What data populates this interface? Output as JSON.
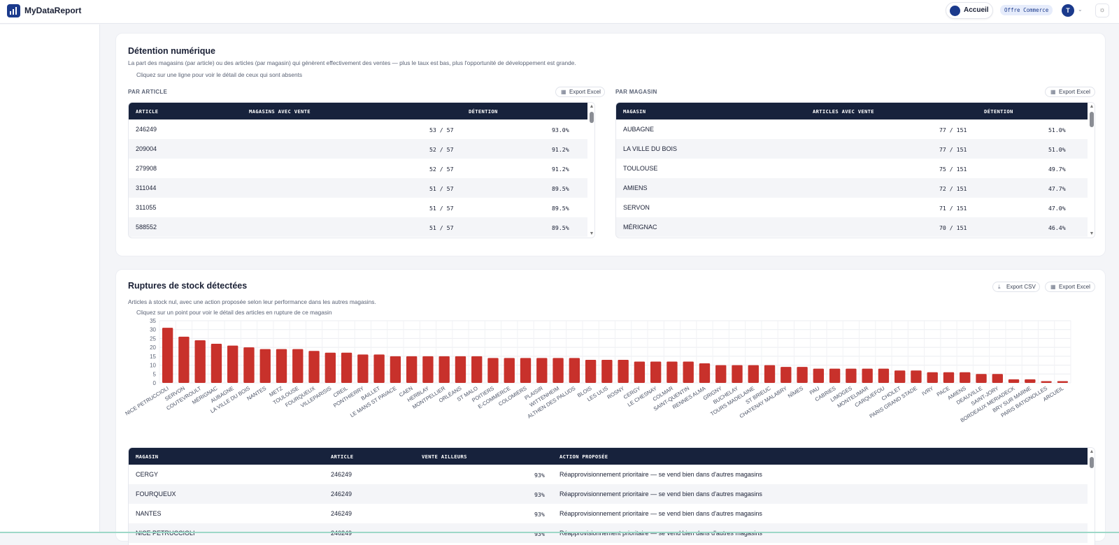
{
  "app": {
    "title": "MyDataReport"
  },
  "header": {
    "home_label": "Accueil",
    "offer_label": "Offre Commerce",
    "avatar_initial": "T"
  },
  "detention": {
    "title": "Détention numérique",
    "description": "La part des magasins (par article) ou des articles (par magasin) qui génèrent effectivement des ventes — plus le taux est bas, plus l'opportunité de développement est grande.",
    "hint": "Cliquez sur une ligne pour voir le détail de ceux qui sont absents",
    "by_article": {
      "label": "PAR ARTICLE",
      "export_label": "Export Excel",
      "columns": [
        "ARTICLE",
        "MAGASINS AVEC VENTE",
        "DÉTENTION"
      ],
      "rows": [
        {
          "article": "246249",
          "ratio": "53 / 57",
          "rate": "93.0%"
        },
        {
          "article": "209004",
          "ratio": "52 / 57",
          "rate": "91.2%"
        },
        {
          "article": "279908",
          "ratio": "52 / 57",
          "rate": "91.2%"
        },
        {
          "article": "311044",
          "ratio": "51 / 57",
          "rate": "89.5%"
        },
        {
          "article": "311055",
          "ratio": "51 / 57",
          "rate": "89.5%"
        },
        {
          "article": "588552",
          "ratio": "51 / 57",
          "rate": "89.5%"
        }
      ]
    },
    "by_store": {
      "label": "PAR MAGASIN",
      "export_label": "Export Excel",
      "columns": [
        "MAGASIN",
        "ARTICLES AVEC VENTE",
        "DÉTENTION"
      ],
      "rows": [
        {
          "store": "AUBAGNE",
          "ratio": "77 / 151",
          "rate": "51.0%"
        },
        {
          "store": "LA VILLE DU BOIS",
          "ratio": "77 / 151",
          "rate": "51.0%"
        },
        {
          "store": "TOULOUSE",
          "ratio": "75 / 151",
          "rate": "49.7%"
        },
        {
          "store": "AMIENS",
          "ratio": "72 / 151",
          "rate": "47.7%"
        },
        {
          "store": "SERVON",
          "ratio": "71 / 151",
          "rate": "47.0%"
        },
        {
          "store": "MÉRIGNAC",
          "ratio": "70 / 151",
          "rate": "46.4%"
        }
      ]
    }
  },
  "ruptures": {
    "title": "Ruptures de stock détectées",
    "description": "Articles à stock nul, avec une action proposée selon leur performance dans les autres magasins.",
    "hint": "Cliquez sur un point pour voir le détail des articles en rupture de ce magasin",
    "export_csv_label": "Export CSV",
    "export_excel_label": "Export Excel",
    "table": {
      "columns": [
        "MAGASIN",
        "ARTICLE",
        "VENTE AILLEURS",
        "ACTION PROPOSÉE"
      ],
      "rows": [
        {
          "store": "CERGY",
          "article": "246249",
          "elsewhere": "93%",
          "action": "Réapprovisionnement prioritaire — se vend bien dans d'autres magasins"
        },
        {
          "store": "FOURQUEUX",
          "article": "246249",
          "elsewhere": "93%",
          "action": "Réapprovisionnement prioritaire — se vend bien dans d'autres magasins"
        },
        {
          "store": "NANTES",
          "article": "246249",
          "elsewhere": "93%",
          "action": "Réapprovisionnement prioritaire — se vend bien dans d'autres magasins"
        },
        {
          "store": "NICE PETRUCCIOLI",
          "article": "246249",
          "elsewhere": "93%",
          "action": "Réapprovisionnement prioritaire — se vend bien dans d'autres magasins"
        }
      ]
    }
  },
  "chart_data": {
    "type": "bar",
    "title": "",
    "xlabel": "",
    "ylabel": "",
    "ylim": [
      0,
      35
    ],
    "yticks": [
      0,
      5,
      10,
      15,
      20,
      25,
      30,
      35
    ],
    "grid": true,
    "bar_color": "#c8312b",
    "categories": [
      "NICE PETRUCCIOLI",
      "SERVON",
      "COUTEVROULT",
      "MÉRIGNAC",
      "AUBAGNE",
      "LA VILLE DU BOIS",
      "NANTES",
      "METZ",
      "TOULOUSE",
      "FOURQUEUX",
      "VILLEPARISIS",
      "CREIL",
      "PONTHIERRY",
      "BAILLET",
      "LE MANS ST PAVACE",
      "CAEN",
      "HERBLAY",
      "MONTPELLIER",
      "ORLÉANS",
      "ST MALO",
      "POITIERS",
      "E-COMMERCE",
      "COLOMIERS",
      "PLAISIR",
      "WITTENHEIM",
      "ALTHEN DES PALUDS",
      "BLOIS",
      "LES ULIS",
      "ROSNY",
      "CERGY",
      "LE CHESNAY",
      "COLMAR",
      "SAINT-QUENTIN",
      "RENNES ALMA",
      "GRIGNY",
      "BUCHELAY",
      "TOURS MADELAINE",
      "ST BRIEUC",
      "CHATENAY MALABRY",
      "NÎMES",
      "PAU",
      "CABRIES",
      "LIMOGES",
      "MONTELIMAR",
      "CARQUEFOU",
      "CHOLET",
      "PARIS GRAND STADE",
      "IVRY",
      "PACE",
      "AMIENS",
      "DEAUVILLE",
      "SAINT-JORY",
      "BORDEAUX MERIADECK",
      "BRY SUR MARNE",
      "PARIS BATIGNOLLES",
      "ARCUEIL"
    ],
    "values": [
      31,
      26,
      24,
      22,
      21,
      20,
      19,
      19,
      19,
      18,
      17,
      17,
      16,
      16,
      15,
      15,
      15,
      15,
      15,
      15,
      14,
      14,
      14,
      14,
      14,
      14,
      13,
      13,
      13,
      12,
      12,
      12,
      12,
      11,
      10,
      10,
      10,
      10,
      9,
      9,
      8,
      8,
      8,
      8,
      8,
      7,
      7,
      6,
      6,
      6,
      5,
      5,
      2,
      2,
      1,
      1
    ]
  }
}
